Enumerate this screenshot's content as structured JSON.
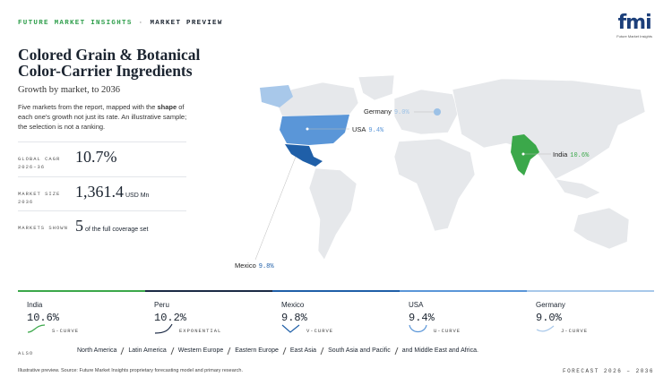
{
  "header": {
    "brand": "FUTURE MARKET INSIGHTS",
    "separator": "·",
    "section": "MARKET PREVIEW",
    "logo": "fmi",
    "logo_caption": "Future Market Insights"
  },
  "title": "Colored Grain & Botanical Color-Carrier Ingredients",
  "subtitle": "Growth by market, to 2036",
  "intro": [
    "Five markets from the report, mapped with the ",
    "shape",
    " of each one's growth not just its rate. An illustrative sample; the selection is not a ranking."
  ],
  "stats": [
    {
      "label": "GLOBAL CAGR 2026–36",
      "value": "10.7%"
    },
    {
      "label": "MARKET SIZE 2036",
      "value": "1,361.4",
      "unit": "USD Mn"
    },
    {
      "label": "MARKETS SHOWN",
      "value": "5",
      "unit": "of the full coverage set"
    }
  ],
  "markets": [
    {
      "name": "India",
      "cagr": "10.6%",
      "curve": "S-CURVE"
    },
    {
      "name": "Peru",
      "cagr": "10.2%",
      "curve": "EXPONENTIAL"
    },
    {
      "name": "Mexico",
      "cagr": "9.8%",
      "curve": "V-CURVE"
    },
    {
      "name": "USA",
      "cagr": "9.4%",
      "curve": "U-CURVE"
    },
    {
      "name": "Germany",
      "cagr": "9.0%",
      "curve": "J-CURVE"
    }
  ],
  "also": {
    "label": "ALSO",
    "regions": [
      "North America",
      "Latin America",
      "Western Europe",
      "Eastern Europe",
      "East Asia",
      "South Asia and Pacific",
      "and Middle East and Africa."
    ]
  },
  "footer": {
    "source": "Illustrative preview. Source: Future Market Insights proprietary forecasting model and primary research.",
    "forecast": "FORECAST 2026 – 2036"
  }
}
